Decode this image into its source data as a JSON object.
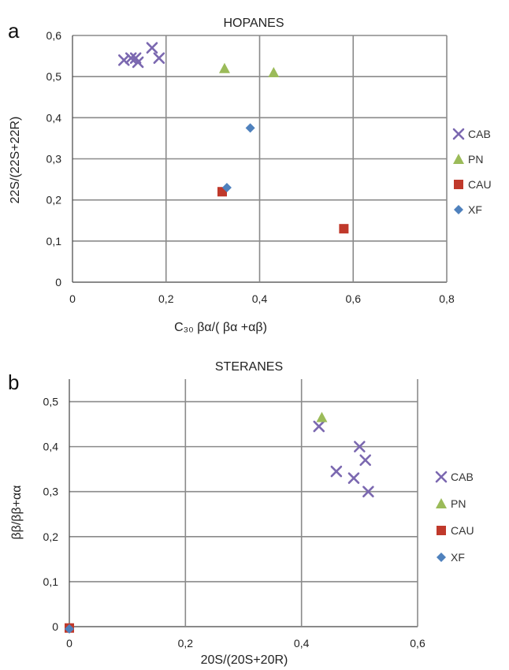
{
  "chart_data": [
    {
      "panel": "a",
      "type": "scatter",
      "title": "HOPANES",
      "xlabel": "C₃₀  βα/( βα +αβ)",
      "ylabel": "22S/(22S+22R)",
      "xlim": [
        0,
        0.8
      ],
      "ylim": [
        0,
        0.6
      ],
      "xticks": [
        "0",
        "0,2",
        "0,4",
        "0,6",
        "0,8"
      ],
      "yticks": [
        "0",
        "0,1",
        "0,2",
        "0,3",
        "0,4",
        "0,5",
        "0,6"
      ],
      "grid": true,
      "legend_position": "right",
      "series": [
        {
          "name": "CAB",
          "marker": "x",
          "color": "#7b68b0",
          "points": [
            [
              0.11,
              0.54
            ],
            [
              0.125,
              0.545
            ],
            [
              0.135,
              0.545
            ],
            [
              0.14,
              0.535
            ],
            [
              0.17,
              0.57
            ],
            [
              0.185,
              0.545
            ]
          ]
        },
        {
          "name": "PN",
          "marker": "triangle",
          "color": "#9bbb59",
          "points": [
            [
              0.325,
              0.52
            ],
            [
              0.43,
              0.51
            ]
          ]
        },
        {
          "name": "CAU",
          "marker": "square",
          "color": "#c0392b",
          "points": [
            [
              0.32,
              0.22
            ],
            [
              0.58,
              0.13
            ]
          ]
        },
        {
          "name": "XF",
          "marker": "diamond",
          "color": "#4f81bd",
          "points": [
            [
              0.38,
              0.375
            ],
            [
              0.33,
              0.23
            ]
          ]
        }
      ]
    },
    {
      "panel": "b",
      "type": "scatter",
      "title": "STERANES",
      "xlabel": "20S/(20S+20R)",
      "ylabel": "ββ/ββ+αα",
      "xlim": [
        0,
        0.6
      ],
      "ylim": [
        0,
        0.55
      ],
      "xticks": [
        "0",
        "0,2",
        "0,4",
        "0,6"
      ],
      "yticks": [
        "0",
        "0,1",
        "0,2",
        "0,3",
        "0,4",
        "0,5"
      ],
      "grid": true,
      "legend_position": "right",
      "series": [
        {
          "name": "CAB",
          "marker": "x",
          "color": "#7b68b0",
          "points": [
            [
              0.43,
              0.445
            ],
            [
              0.46,
              0.345
            ],
            [
              0.49,
              0.33
            ],
            [
              0.5,
              0.4
            ],
            [
              0.51,
              0.37
            ],
            [
              0.515,
              0.3
            ]
          ]
        },
        {
          "name": "PN",
          "marker": "triangle",
          "color": "#9bbb59",
          "points": [
            [
              0.435,
              0.465
            ]
          ]
        },
        {
          "name": "CAU",
          "marker": "square",
          "color": "#c0392b",
          "points": [
            [
              0,
              -0.003
            ]
          ]
        },
        {
          "name": "XF",
          "marker": "diamond",
          "color": "#4f81bd",
          "points": [
            [
              0,
              -0.005
            ]
          ]
        }
      ]
    }
  ]
}
